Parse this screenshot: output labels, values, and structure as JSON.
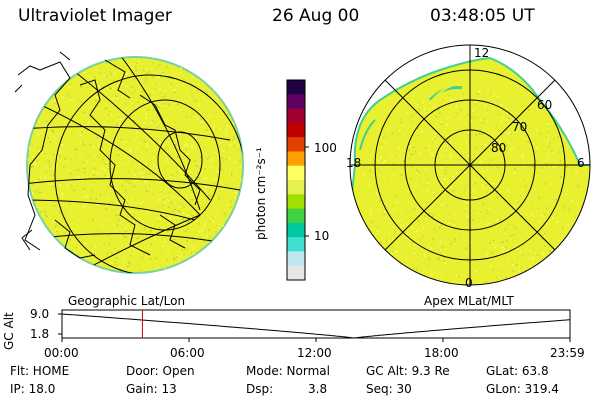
{
  "header": {
    "instrument": "Ultraviolet Imager",
    "date": "26 Aug 00",
    "time": "03:48:05 UT"
  },
  "colorbar": {
    "unit_label": "photon cm⁻²s⁻¹",
    "tick_100": "100",
    "tick_10": "10",
    "colors": [
      "#e6e6e6",
      "#c0e6f0",
      "#40e0d0",
      "#00c8a0",
      "#40d040",
      "#a0e000",
      "#e6f050",
      "#ffff60",
      "#ffa000",
      "#e04000",
      "#c00000",
      "#a00030",
      "#600060",
      "#200040"
    ]
  },
  "geographic_panel": {
    "label": "Geographic Lat/Lon",
    "fill_color": "#e8f030"
  },
  "polar_panel": {
    "label": "Apex MLat/MLT",
    "mlt_12": "12",
    "mlt_18": "18",
    "mlt_6": "6",
    "mlt_0": "0",
    "lat_60": "60",
    "lat_70": "70",
    "lat_80": "80"
  },
  "altitude_plot": {
    "ylabel": "GC Alt",
    "tick_9": "9.0",
    "tick_1": "1.8",
    "x_ticks": [
      "00:00",
      "06:00",
      "12:00",
      "18:00",
      "23:59"
    ],
    "marker_hour": 3.8
  },
  "status": {
    "flt": "Flt: HOME",
    "ip": "IP: 18.0",
    "door": "Door: Open",
    "gain": "Gain: 13",
    "mode": "Mode: Normal",
    "dsp_label": "Dsp:",
    "dsp_value": "3.8",
    "gc_alt": "GC Alt: 9.3 Re",
    "seq": "Seq: 30",
    "glat": "GLat: 63.8",
    "glon": "GLon: 319.4"
  }
}
